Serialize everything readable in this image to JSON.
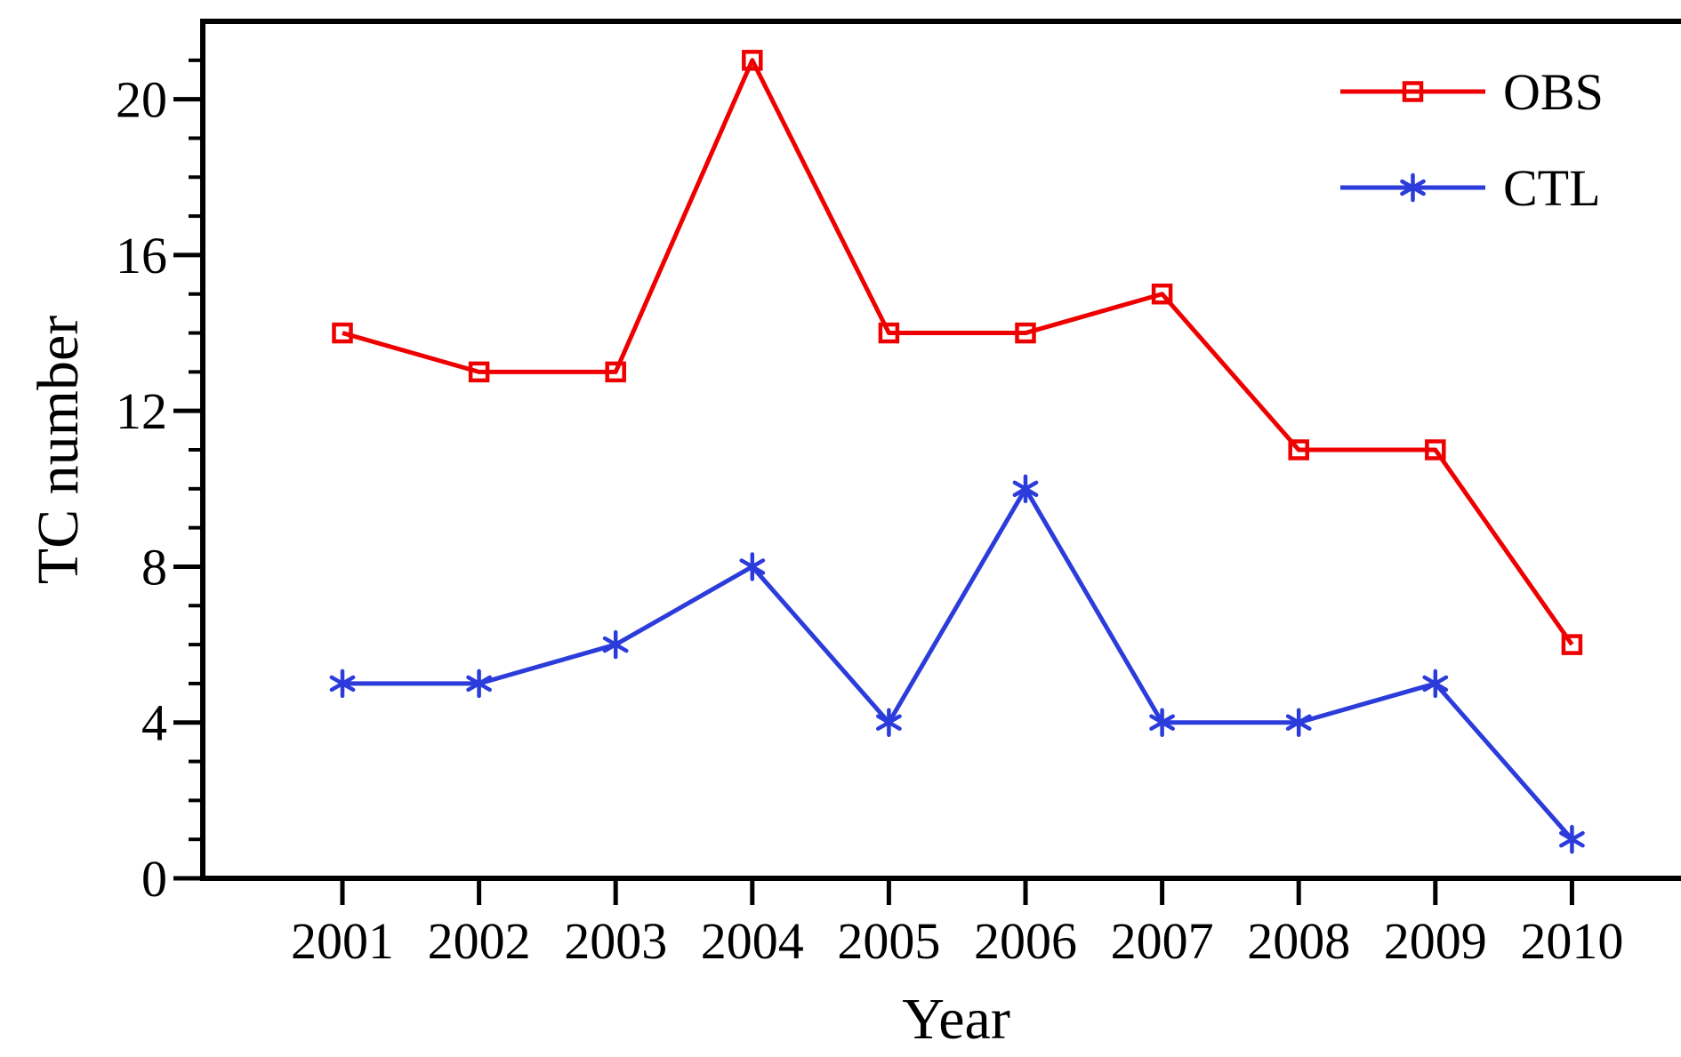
{
  "figure": {
    "background": "#ffffff",
    "frame_color": "#000000"
  },
  "chart_data": {
    "type": "line",
    "title": "",
    "xlabel": "Year",
    "ylabel": "TC number",
    "x": [
      2001,
      2002,
      2003,
      2004,
      2005,
      2006,
      2007,
      2008,
      2009,
      2010
    ],
    "series": [
      {
        "name": "OBS",
        "color": "#ee0000",
        "marker": "square",
        "values": [
          14,
          13,
          13,
          21,
          14,
          14,
          15,
          11,
          11,
          6
        ]
      },
      {
        "name": "CTL",
        "color": "#2b3cdb",
        "marker": "asterisk",
        "values": [
          5,
          5,
          6,
          8,
          4,
          10,
          4,
          4,
          5,
          1
        ]
      }
    ],
    "ylim": [
      0,
      22
    ],
    "yticks_major": [
      0,
      4,
      8,
      12,
      16,
      20
    ],
    "ytick_minor_step": 1,
    "grid": false,
    "legend_position": "top-right"
  }
}
